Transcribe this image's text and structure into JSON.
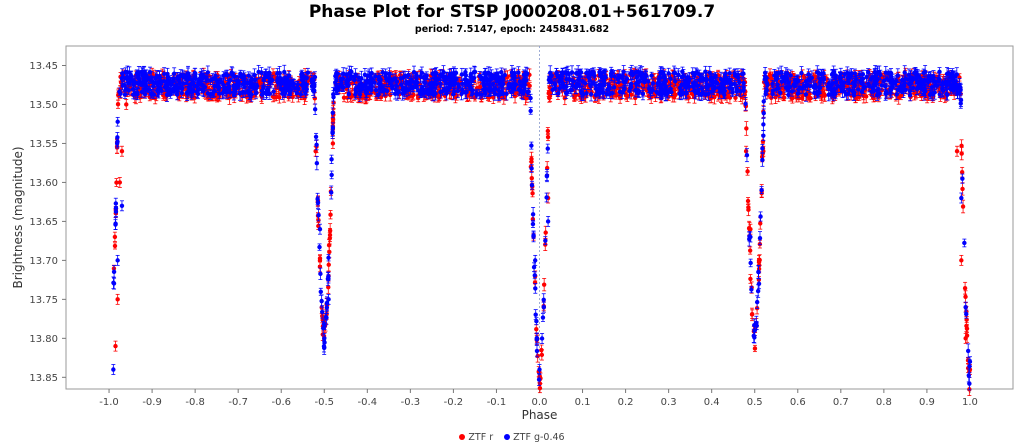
{
  "chart_data": {
    "type": "scatter",
    "title": "Phase Plot for STSP J000208.01+561709.7",
    "subtitle": "period: 7.5147, epoch: 2458431.682",
    "xlabel": "Phase",
    "ylabel": "Brightness (magnitude)",
    "xlim": [
      -1.1,
      1.1
    ],
    "ylim": [
      13.865,
      13.425
    ],
    "y_inverted": true,
    "x_ticks": [
      "-1.0",
      "-0.9",
      "-0.8",
      "-0.7",
      "-0.6",
      "-0.5",
      "-0.4",
      "-0.3",
      "-0.2",
      "-0.1",
      "0.0",
      "0.1",
      "0.2",
      "0.3",
      "0.4",
      "0.5",
      "0.6",
      "0.7",
      "0.8",
      "0.9",
      "1.0"
    ],
    "y_ticks": [
      "13.45",
      "13.50",
      "13.55",
      "13.60",
      "13.65",
      "13.70",
      "13.75",
      "13.80",
      "13.85"
    ],
    "grid": false,
    "legend_position": "bottom-center",
    "reference_line_x": 0.0,
    "baseline_magnitude": 13.475,
    "primary_eclipse": {
      "phase": 0.0,
      "min_magnitude": 13.855
    },
    "secondary_eclipse": {
      "phase": 0.5,
      "min_magnitude": 13.8
    },
    "series": [
      {
        "name": "ZTF r",
        "color": "#ff0000",
        "points": [
          [
            -0.985,
            13.81
          ],
          [
            -0.98,
            13.75
          ],
          [
            -0.975,
            13.6
          ],
          [
            -0.97,
            13.56
          ],
          [
            -0.96,
            13.5
          ],
          [
            -0.9,
            13.46
          ],
          [
            -0.8,
            13.48
          ],
          [
            -0.7,
            13.47
          ],
          [
            -0.6,
            13.48
          ],
          [
            -0.52,
            13.56
          ],
          [
            -0.51,
            13.7
          ],
          [
            -0.5,
            13.78
          ],
          [
            -0.49,
            13.72
          ],
          [
            -0.48,
            13.55
          ],
          [
            -0.4,
            13.47
          ],
          [
            -0.3,
            13.48
          ],
          [
            -0.2,
            13.47
          ],
          [
            -0.1,
            13.48
          ],
          [
            -0.02,
            13.58
          ],
          [
            -0.01,
            13.72
          ],
          [
            0.0,
            13.85
          ],
          [
            0.01,
            13.76
          ],
          [
            0.02,
            13.62
          ],
          [
            0.1,
            13.47
          ],
          [
            0.2,
            13.48
          ],
          [
            0.3,
            13.47
          ],
          [
            0.4,
            13.48
          ],
          [
            0.48,
            13.56
          ],
          [
            0.49,
            13.66
          ],
          [
            0.5,
            13.79
          ],
          [
            0.51,
            13.7
          ],
          [
            0.52,
            13.56
          ],
          [
            0.6,
            13.47
          ],
          [
            0.7,
            13.48
          ],
          [
            0.8,
            13.47
          ],
          [
            0.9,
            13.48
          ],
          [
            0.97,
            13.56
          ],
          [
            0.98,
            13.7
          ],
          [
            0.99,
            13.8
          ],
          [
            1.0,
            13.84
          ]
        ]
      },
      {
        "name": "ZTF g-0.46",
        "color": "#0000ff",
        "points": [
          [
            -0.99,
            13.84
          ],
          [
            -0.98,
            13.7
          ],
          [
            -0.97,
            13.63
          ],
          [
            -0.96,
            13.48
          ],
          [
            -0.9,
            13.47
          ],
          [
            -0.8,
            13.46
          ],
          [
            -0.7,
            13.47
          ],
          [
            -0.6,
            13.48
          ],
          [
            -0.51,
            13.66
          ],
          [
            -0.5,
            13.8
          ],
          [
            -0.49,
            13.75
          ],
          [
            -0.48,
            13.53
          ],
          [
            -0.4,
            13.47
          ],
          [
            -0.3,
            13.47
          ],
          [
            -0.2,
            13.46
          ],
          [
            -0.1,
            13.47
          ],
          [
            -0.01,
            13.7
          ],
          [
            0.0,
            13.84
          ],
          [
            0.01,
            13.76
          ],
          [
            0.02,
            13.65
          ],
          [
            0.1,
            13.47
          ],
          [
            0.2,
            13.47
          ],
          [
            0.3,
            13.46
          ],
          [
            0.4,
            13.47
          ],
          [
            0.49,
            13.67
          ],
          [
            0.5,
            13.79
          ],
          [
            0.51,
            13.73
          ],
          [
            0.52,
            13.54
          ],
          [
            0.6,
            13.47
          ],
          [
            0.7,
            13.46
          ],
          [
            0.8,
            13.47
          ],
          [
            0.9,
            13.47
          ],
          [
            0.98,
            13.62
          ],
          [
            0.99,
            13.76
          ],
          [
            1.0,
            13.83
          ]
        ]
      }
    ]
  }
}
